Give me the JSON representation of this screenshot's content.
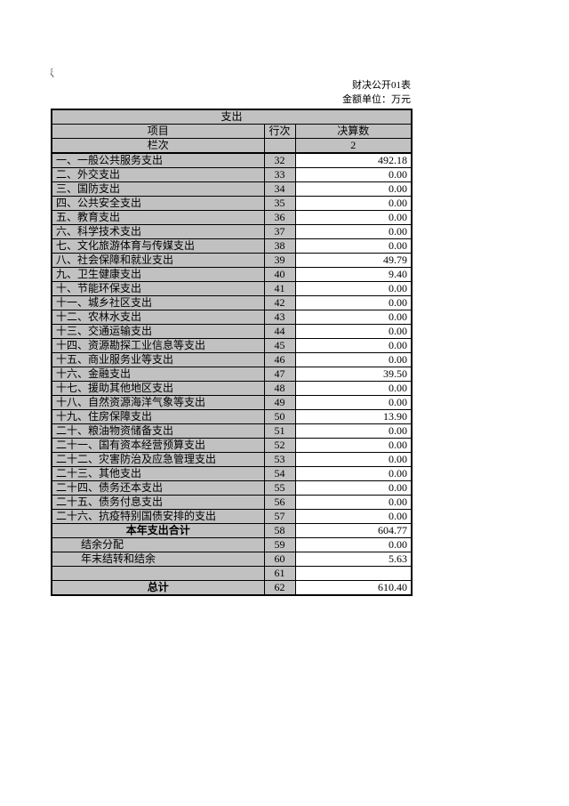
{
  "page": {
    "corner_artifact": "ξ̣",
    "doc_label": "财决公开01表",
    "unit_label": "金额单位：万元"
  },
  "table": {
    "title": "支出",
    "columns": {
      "item": "项目",
      "line": "行次",
      "amount": "决算数"
    },
    "colindex": {
      "item": "栏次",
      "line": "",
      "amount": "2"
    },
    "rows": [
      {
        "label": "一、一般公共服务支出",
        "line": "32",
        "value": "492.18",
        "style": "normal"
      },
      {
        "label": "二、外交支出",
        "line": "33",
        "value": "0.00",
        "style": "normal"
      },
      {
        "label": "三、国防支出",
        "line": "34",
        "value": "0.00",
        "style": "normal"
      },
      {
        "label": "四、公共安全支出",
        "line": "35",
        "value": "0.00",
        "style": "normal"
      },
      {
        "label": "五、教育支出",
        "line": "36",
        "value": "0.00",
        "style": "normal"
      },
      {
        "label": "六、科学技术支出",
        "line": "37",
        "value": "0.00",
        "style": "normal"
      },
      {
        "label": "七、文化旅游体育与传媒支出",
        "line": "38",
        "value": "0.00",
        "style": "normal"
      },
      {
        "label": "八、社会保障和就业支出",
        "line": "39",
        "value": "49.79",
        "style": "normal"
      },
      {
        "label": "九、卫生健康支出",
        "line": "40",
        "value": "9.40",
        "style": "normal"
      },
      {
        "label": "十、节能环保支出",
        "line": "41",
        "value": "0.00",
        "style": "normal"
      },
      {
        "label": "十一、城乡社区支出",
        "line": "42",
        "value": "0.00",
        "style": "normal"
      },
      {
        "label": "十二、农林水支出",
        "line": "43",
        "value": "0.00",
        "style": "normal"
      },
      {
        "label": "十三、交通运输支出",
        "line": "44",
        "value": "0.00",
        "style": "normal"
      },
      {
        "label": "十四、资源勘探工业信息等支出",
        "line": "45",
        "value": "0.00",
        "style": "normal"
      },
      {
        "label": "十五、商业服务业等支出",
        "line": "46",
        "value": "0.00",
        "style": "normal"
      },
      {
        "label": "十六、金融支出",
        "line": "47",
        "value": "39.50",
        "style": "normal"
      },
      {
        "label": "十七、援助其他地区支出",
        "line": "48",
        "value": "0.00",
        "style": "normal"
      },
      {
        "label": "十八、自然资源海洋气象等支出",
        "line": "49",
        "value": "0.00",
        "style": "normal"
      },
      {
        "label": "十九、住房保障支出",
        "line": "50",
        "value": "13.90",
        "style": "normal"
      },
      {
        "label": "二十、粮油物资储备支出",
        "line": "51",
        "value": "0.00",
        "style": "normal"
      },
      {
        "label": "二十一、国有资本经营预算支出",
        "line": "52",
        "value": "0.00",
        "style": "normal"
      },
      {
        "label": "二十二、灾害防治及应急管理支出",
        "line": "53",
        "value": "0.00",
        "style": "normal"
      },
      {
        "label": "二十三、其他支出",
        "line": "54",
        "value": "0.00",
        "style": "normal"
      },
      {
        "label": "二十四、债务还本支出",
        "line": "55",
        "value": "0.00",
        "style": "normal"
      },
      {
        "label": "二十五、债务付息支出",
        "line": "56",
        "value": "0.00",
        "style": "normal"
      },
      {
        "label": "二十六、抗疫特别国债安排的支出",
        "line": "57",
        "value": "0.00",
        "style": "normal"
      },
      {
        "label": "本年支出合计",
        "line": "58",
        "value": "604.77",
        "style": "total"
      },
      {
        "label": "结余分配",
        "line": "59",
        "value": "0.00",
        "style": "indent"
      },
      {
        "label": "年末结转和结余",
        "line": "60",
        "value": "5.63",
        "style": "indent"
      },
      {
        "label": "",
        "line": "61",
        "value": "",
        "style": "empty"
      },
      {
        "label": "总计",
        "line": "62",
        "value": "610.40",
        "style": "total"
      }
    ]
  }
}
